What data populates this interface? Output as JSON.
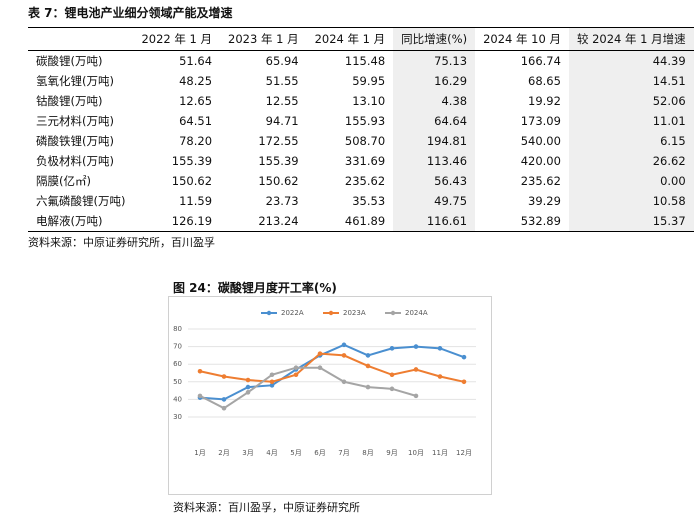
{
  "table": {
    "title": "表 7：锂电池产业细分领域产能及增速",
    "header": [
      "",
      "2022 年 1 月",
      "2023 年 1 月",
      "2024 年 1 月",
      "同比增速(%)",
      "2024 年 10 月",
      "较 2024 年 1 月增速"
    ],
    "rows": [
      [
        "碳酸锂(万吨)",
        "51.64",
        "65.94",
        "115.48",
        "75.13",
        "166.74",
        "44.39"
      ],
      [
        "氢氧化锂(万吨)",
        "48.25",
        "51.55",
        "59.95",
        "16.29",
        "68.65",
        "14.51"
      ],
      [
        "钴酸锂(万吨)",
        "12.65",
        "12.55",
        "13.10",
        "4.38",
        "19.92",
        "52.06"
      ],
      [
        "三元材料(万吨)",
        "64.51",
        "94.71",
        "155.93",
        "64.64",
        "173.09",
        "11.01"
      ],
      [
        "磷酸铁锂(万吨)",
        "78.20",
        "172.55",
        "508.70",
        "194.81",
        "540.00",
        "6.15"
      ],
      [
        "负极材料(万吨)",
        "155.39",
        "155.39",
        "331.69",
        "113.46",
        "420.00",
        "26.62"
      ],
      [
        "隔膜(亿㎡)",
        "150.62",
        "150.62",
        "235.62",
        "56.43",
        "235.62",
        "0.00"
      ],
      [
        "六氟磷酸锂(万吨)",
        "11.59",
        "23.73",
        "35.53",
        "49.75",
        "39.29",
        "10.58"
      ],
      [
        "电解液(万吨)",
        "126.19",
        "213.24",
        "461.89",
        "116.61",
        "532.89",
        "15.37"
      ]
    ],
    "source": "资料来源：中原证券研究所，百川盈孚"
  },
  "chart_data": {
    "type": "line",
    "title": "图 24：碳酸锂月度开工率(%)",
    "categories": [
      "1月",
      "2月",
      "3月",
      "4月",
      "5月",
      "6月",
      "7月",
      "8月",
      "9月",
      "10月",
      "11月",
      "12月"
    ],
    "series": [
      {
        "name": "2022A",
        "color": "#4a8fd0",
        "values": [
          41,
          40,
          47,
          48,
          57,
          65,
          71,
          65,
          69,
          70,
          69,
          64
        ]
      },
      {
        "name": "2023A",
        "color": "#ee7d31",
        "values": [
          56,
          53,
          51,
          50,
          54,
          66,
          65,
          59,
          54,
          57,
          53,
          50
        ]
      },
      {
        "name": "2024A",
        "color": "#a5a5a5",
        "values": [
          42,
          35,
          44,
          54,
          58,
          58,
          50,
          47,
          46,
          42,
          null,
          null
        ]
      }
    ],
    "ylim": [
      30,
      80
    ],
    "yticks": [
      30,
      40,
      50,
      60,
      70,
      80
    ],
    "grid": true,
    "legend": "top",
    "source": "资料来源：百川盈孚，中原证券研究所"
  }
}
